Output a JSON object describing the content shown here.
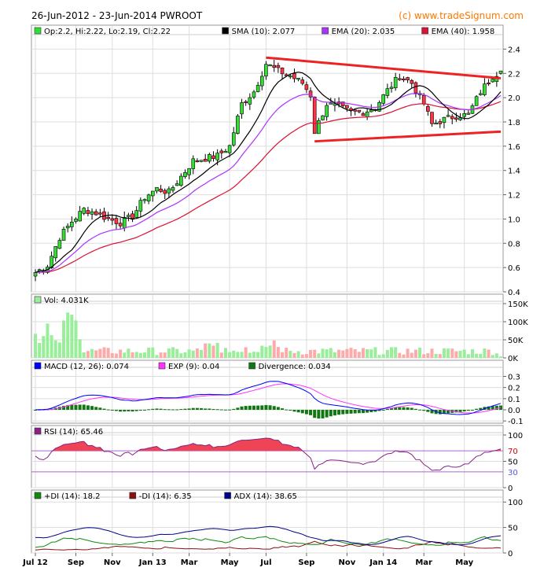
{
  "header": {
    "title": "26-Jun-2012 - 23-Jun-2014 PWROOT",
    "copyright": "(c) www.tradeSignum.com"
  },
  "colors": {
    "bull": "#33dd33",
    "bear": "#ff3344",
    "sma": "#000000",
    "ema20": "#aa33ff",
    "ema40": "#dd1133",
    "trend": "#ee2222",
    "vol_up": "#99ee99",
    "vol_down": "#ffaaaa",
    "vol_flat": "#bbbbbb",
    "macd": "#0000ff",
    "exp": "#ff33ff",
    "divergence": "#117711",
    "rsi": "#882288",
    "rsi_fill": "#ee4455",
    "pdi": "#118811",
    "mdi": "#881111",
    "adx": "#000088"
  },
  "chart_data": [
    {
      "type": "candlestick",
      "legend": [
        {
          "label": "Op:2.2, Hi:2.22, Lo:2.19, Cl:2.22",
          "color_key": "bull"
        },
        {
          "label": "SMA (10): 2.077",
          "color_key": "sma"
        },
        {
          "label": "EMA (20): 2.035",
          "color_key": "ema20"
        },
        {
          "label": "EMA (40): 1.958",
          "color_key": "ema40"
        }
      ],
      "x_ticks": [
        "Jul 12",
        "Sep",
        "Nov",
        "Jan 13",
        "Mar",
        "May",
        "Jul",
        "Sep",
        "Nov",
        "Jan 14",
        "Mar",
        "May"
      ],
      "y_ticks": [
        "0.4",
        "0.6",
        "0.8",
        "1.0",
        "1.2",
        "1.4",
        "1.6",
        "1.8",
        "2.0",
        "2.2",
        "2.4"
      ],
      "ylim": [
        0.4,
        2.5
      ],
      "last_values": {
        "open": 2.2,
        "high": 2.22,
        "low": 2.19,
        "close": 2.22
      },
      "price_path": [
        [
          0,
          0.56
        ],
        [
          3,
          0.62
        ],
        [
          6,
          0.85
        ],
        [
          9,
          0.98
        ],
        [
          12,
          1.08
        ],
        [
          15,
          1.05
        ],
        [
          18,
          1.0
        ],
        [
          21,
          0.97
        ],
        [
          24,
          1.02
        ],
        [
          27,
          1.18
        ],
        [
          30,
          1.25
        ],
        [
          33,
          1.22
        ],
        [
          36,
          1.35
        ],
        [
          39,
          1.48
        ],
        [
          42,
          1.5
        ],
        [
          45,
          1.52
        ],
        [
          48,
          1.6
        ],
        [
          51,
          1.95
        ],
        [
          54,
          2.05
        ],
        [
          57,
          2.28
        ],
        [
          60,
          2.22
        ],
        [
          63,
          2.18
        ],
        [
          66,
          2.12
        ],
        [
          68,
          2.02
        ],
        [
          69,
          1.72
        ],
        [
          72,
          1.95
        ],
        [
          75,
          1.92
        ],
        [
          78,
          1.88
        ],
        [
          81,
          1.88
        ],
        [
          84,
          1.92
        ],
        [
          87,
          2.06
        ],
        [
          90,
          2.18
        ],
        [
          93,
          2.12
        ],
        [
          96,
          1.95
        ],
        [
          98,
          1.78
        ],
        [
          101,
          1.82
        ],
        [
          104,
          1.85
        ],
        [
          107,
          1.86
        ],
        [
          110,
          2.05
        ],
        [
          113,
          2.18
        ],
        [
          115,
          2.22
        ]
      ],
      "trendlines": [
        {
          "from": [
            57,
            2.33
          ],
          "to": [
            115,
            2.16
          ]
        },
        {
          "from": [
            69,
            1.64
          ],
          "to": [
            115,
            1.72
          ]
        }
      ]
    },
    {
      "type": "bar",
      "legend": [
        {
          "label": "Vol: 4.031K",
          "color_key": "vol_up"
        }
      ],
      "y_ticks": [
        "0K",
        "50K",
        "100K",
        "150K"
      ],
      "ylim": [
        0,
        150
      ]
    },
    {
      "type": "line",
      "legend": [
        {
          "label": "MACD (12, 26): 0.074",
          "color_key": "macd"
        },
        {
          "label": "EXP (9): 0.04",
          "color_key": "exp"
        },
        {
          "label": "Divergence: 0.034",
          "color_key": "divergence"
        }
      ],
      "y_ticks": [
        "-0.1",
        "0.0",
        "0.1",
        "0.2",
        "0.3"
      ],
      "ylim": [
        -0.12,
        0.36
      ]
    },
    {
      "type": "line",
      "legend": [
        {
          "label": "RSI (14): 65.46",
          "color_key": "rsi"
        }
      ],
      "y_ticks": [
        "0",
        "50",
        "100"
      ],
      "guide_labels": [
        "70",
        "30"
      ],
      "guides": [
        70,
        30
      ],
      "ylim": [
        0,
        100
      ]
    },
    {
      "type": "line",
      "legend": [
        {
          "label": "+DI (14): 18.2",
          "color_key": "pdi"
        },
        {
          "label": "-DI (14): 6.35",
          "color_key": "mdi"
        },
        {
          "label": "ADX (14): 38.65",
          "color_key": "adx"
        }
      ],
      "y_ticks": [
        "0",
        "50",
        "100"
      ],
      "ylim": [
        0,
        105
      ]
    }
  ]
}
